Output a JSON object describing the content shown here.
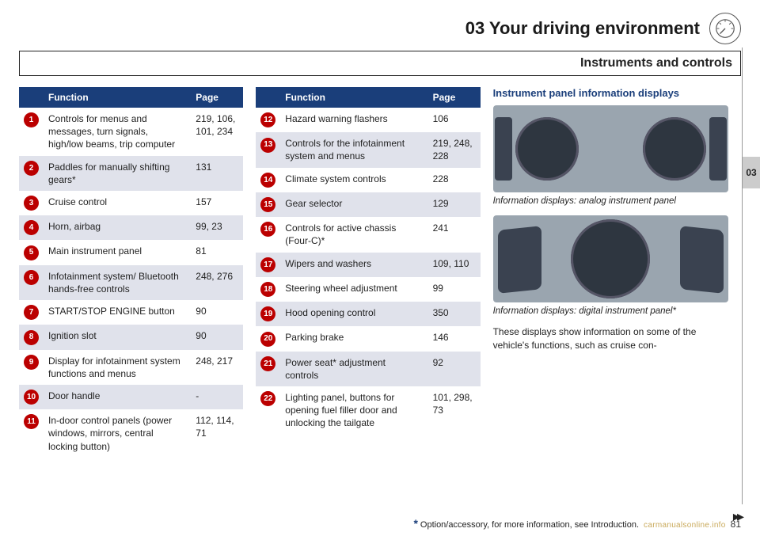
{
  "chapter": "03 Your driving environment",
  "section": "Instruments and controls",
  "tab": "03",
  "table_header": {
    "function": "Function",
    "page": "Page"
  },
  "table1": [
    {
      "n": "1",
      "f": "Controls for menus and messages, turn signals, high/low beams, trip computer",
      "p": "219, 106, 101, 234"
    },
    {
      "n": "2",
      "f": "Paddles for manually shifting gears*",
      "p": "131"
    },
    {
      "n": "3",
      "f": "Cruise control",
      "p": "157"
    },
    {
      "n": "4",
      "f": "Horn, airbag",
      "p": "99, 23"
    },
    {
      "n": "5",
      "f": "Main instrument panel",
      "p": "81"
    },
    {
      "n": "6",
      "f": "Infotainment system/ Bluetooth hands-free controls",
      "p": "248, 276"
    },
    {
      "n": "7",
      "f": "START/STOP ENGINE button",
      "p": "90"
    },
    {
      "n": "8",
      "f": "Ignition slot",
      "p": "90"
    },
    {
      "n": "9",
      "f": "Display for infotainment system functions and menus",
      "p": "248, 217"
    },
    {
      "n": "10",
      "f": "Door handle",
      "p": "-"
    },
    {
      "n": "11",
      "f": "In-door control panels (power windows, mirrors, central locking button)",
      "p": "112, 114, 71"
    }
  ],
  "table2": [
    {
      "n": "12",
      "f": "Hazard warning flashers",
      "p": "106"
    },
    {
      "n": "13",
      "f": "Controls for the infotainment system and menus",
      "p": "219, 248, 228"
    },
    {
      "n": "14",
      "f": "Climate system controls",
      "p": "228"
    },
    {
      "n": "15",
      "f": "Gear selector",
      "p": "129"
    },
    {
      "n": "16",
      "f": "Controls for active chassis (Four-C)*",
      "p": "241"
    },
    {
      "n": "17",
      "f": "Wipers and washers",
      "p": "109, 110"
    },
    {
      "n": "18",
      "f": "Steering wheel adjustment",
      "p": "99"
    },
    {
      "n": "19",
      "f": "Hood opening control",
      "p": "350"
    },
    {
      "n": "20",
      "f": "Parking brake",
      "p": "146"
    },
    {
      "n": "21",
      "f": "Power seat* adjustment controls",
      "p": "92"
    },
    {
      "n": "22",
      "f": "Lighting panel, buttons for opening fuel filler door and unlocking the tailgate",
      "p": "101, 298, 73"
    }
  ],
  "right": {
    "heading": "Instrument panel information displays",
    "img1_id": "G047079",
    "caption1": "Information displays: analog instrument panel",
    "img2_id": "G048800",
    "caption2": "Information displays: digital instrument panel*",
    "body": "These displays show information on some of the vehicle's functions, such as cruise con-"
  },
  "footer": {
    "note": "Option/accessory, for more information, see Introduction.",
    "link": "carmanualsonline.info",
    "page": "81"
  },
  "colors": {
    "header_bg": "#1a3e7a",
    "row_alt": "#e0e2eb",
    "accent_red": "#b00"
  }
}
